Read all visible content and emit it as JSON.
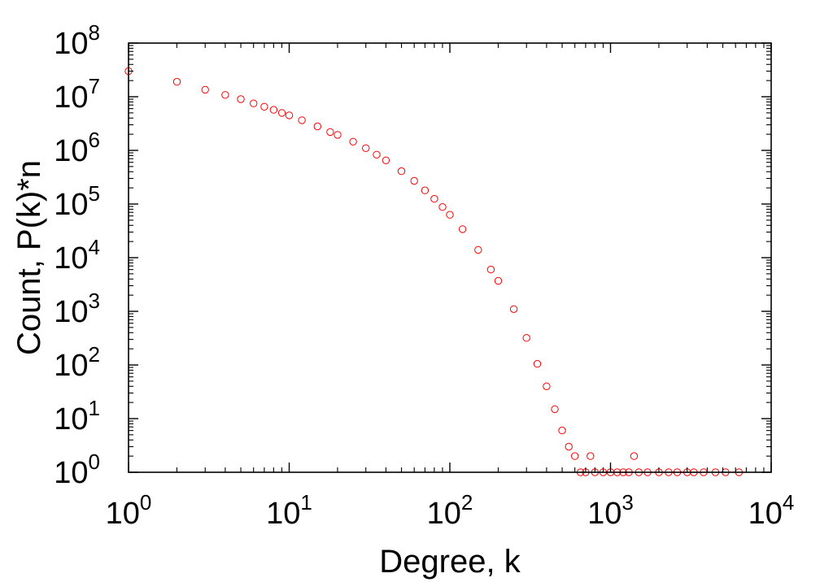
{
  "chart_data": {
    "type": "scatter",
    "xlabel": "Degree, k",
    "ylabel": "Count, P(k)*n",
    "x_scale": "log",
    "y_scale": "log",
    "xlim": [
      1,
      10000
    ],
    "ylim": [
      1,
      100000000
    ],
    "x_ticks": [
      {
        "base": "10",
        "exp": "0"
      },
      {
        "base": "10",
        "exp": "1"
      },
      {
        "base": "10",
        "exp": "2"
      },
      {
        "base": "10",
        "exp": "3"
      },
      {
        "base": "10",
        "exp": "4"
      }
    ],
    "y_ticks": [
      {
        "base": "10",
        "exp": "0"
      },
      {
        "base": "10",
        "exp": "1"
      },
      {
        "base": "10",
        "exp": "2"
      },
      {
        "base": "10",
        "exp": "3"
      },
      {
        "base": "10",
        "exp": "4"
      },
      {
        "base": "10",
        "exp": "5"
      },
      {
        "base": "10",
        "exp": "6"
      },
      {
        "base": "10",
        "exp": "7"
      },
      {
        "base": "10",
        "exp": "8"
      }
    ],
    "grid": false,
    "marker": "open-circle",
    "series_color": "#ff0000",
    "points": [
      [
        1,
        30000000
      ],
      [
        2,
        19000000
      ],
      [
        3,
        13500000
      ],
      [
        4,
        10800000
      ],
      [
        5,
        9000000
      ],
      [
        6,
        7500000
      ],
      [
        7,
        6500000
      ],
      [
        8,
        5700000
      ],
      [
        9,
        5000000
      ],
      [
        10,
        4500000
      ],
      [
        12,
        3650000
      ],
      [
        15,
        2800000
      ],
      [
        18,
        2200000
      ],
      [
        20,
        1950000
      ],
      [
        25,
        1450000
      ],
      [
        30,
        1100000
      ],
      [
        35,
        830000
      ],
      [
        40,
        650000
      ],
      [
        50,
        410000
      ],
      [
        60,
        270000
      ],
      [
        70,
        180000
      ],
      [
        80,
        125000
      ],
      [
        90,
        88000
      ],
      [
        100,
        63000
      ],
      [
        120,
        34000
      ],
      [
        150,
        14000
      ],
      [
        180,
        6000
      ],
      [
        200,
        3700
      ],
      [
        250,
        1100
      ],
      [
        300,
        320
      ],
      [
        350,
        105
      ],
      [
        400,
        40
      ],
      [
        450,
        15
      ],
      [
        500,
        6
      ],
      [
        550,
        3
      ],
      [
        600,
        2
      ],
      [
        650,
        1
      ],
      [
        700,
        1
      ],
      [
        750,
        2
      ],
      [
        800,
        1
      ],
      [
        900,
        1
      ],
      [
        1000,
        1
      ],
      [
        1100,
        1
      ],
      [
        1200,
        1
      ],
      [
        1300,
        1
      ],
      [
        1400,
        2
      ],
      [
        1500,
        1
      ],
      [
        1700,
        1
      ],
      [
        2000,
        1
      ],
      [
        2300,
        1
      ],
      [
        2600,
        1
      ],
      [
        3000,
        1
      ],
      [
        3300,
        1
      ],
      [
        3800,
        1
      ],
      [
        4500,
        1
      ],
      [
        5200,
        1
      ],
      [
        6300,
        1
      ]
    ]
  }
}
